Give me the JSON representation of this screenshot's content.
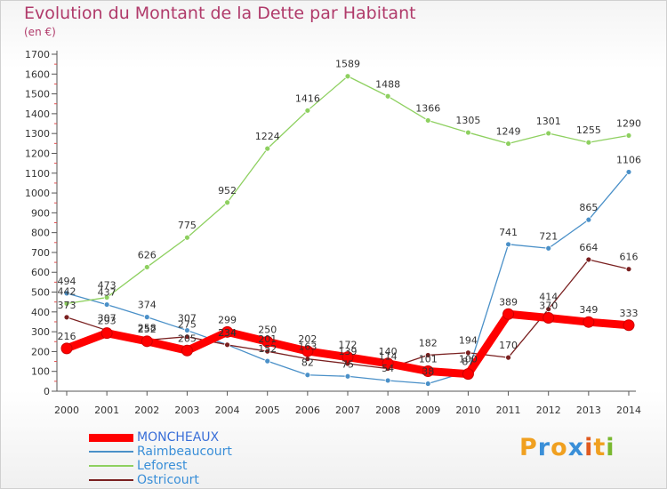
{
  "title": "Evolution du Montant de la Dette par Habitant",
  "unit": "(en €)",
  "logo": {
    "text": "Proxiti",
    "letters": [
      "P",
      "r",
      "o",
      "x",
      "i",
      "t",
      "i"
    ],
    "colors": [
      "#f0a020",
      "#3a8fd8",
      "#f0a020",
      "#3a8fd8",
      "#e05a20",
      "#f0a020",
      "#7ab830"
    ]
  },
  "chart_data": {
    "type": "line",
    "x": [
      2000,
      2001,
      2002,
      2003,
      2004,
      2005,
      2006,
      2007,
      2008,
      2009,
      2010,
      2011,
      2012,
      2013,
      2014
    ],
    "ylim": [
      0,
      1700
    ],
    "yticks": [
      0,
      100,
      200,
      300,
      400,
      500,
      600,
      700,
      800,
      900,
      1000,
      1100,
      1200,
      1300,
      1400,
      1500,
      1600,
      1700
    ],
    "grid": false,
    "legend_position": "bottom-left",
    "series": [
      {
        "name": "MONCHEAUX",
        "color": "#ff0000",
        "values": [
          216,
          293,
          252,
          205,
          299,
          250,
          202,
          172,
          140,
          101,
          87,
          389,
          370,
          349,
          333
        ]
      },
      {
        "name": "Raimbeaucourt",
        "color": "#4a90c8",
        "values": [
          494,
          437,
          374,
          307,
          234,
          152,
          82,
          75,
          54,
          38,
          100,
          741,
          721,
          865,
          1106
        ]
      },
      {
        "name": "Leforest",
        "color": "#8ed060",
        "values": [
          442,
          473,
          626,
          775,
          952,
          1224,
          1416,
          1589,
          1488,
          1366,
          1305,
          1249,
          1301,
          1255,
          1290
        ]
      },
      {
        "name": "Ostricourt",
        "color": "#7a2020",
        "values": [
          373,
          307,
          258,
          275,
          234,
          201,
          163,
          139,
          114,
          182,
          194,
          170,
          414,
          664,
          616
        ]
      }
    ]
  }
}
